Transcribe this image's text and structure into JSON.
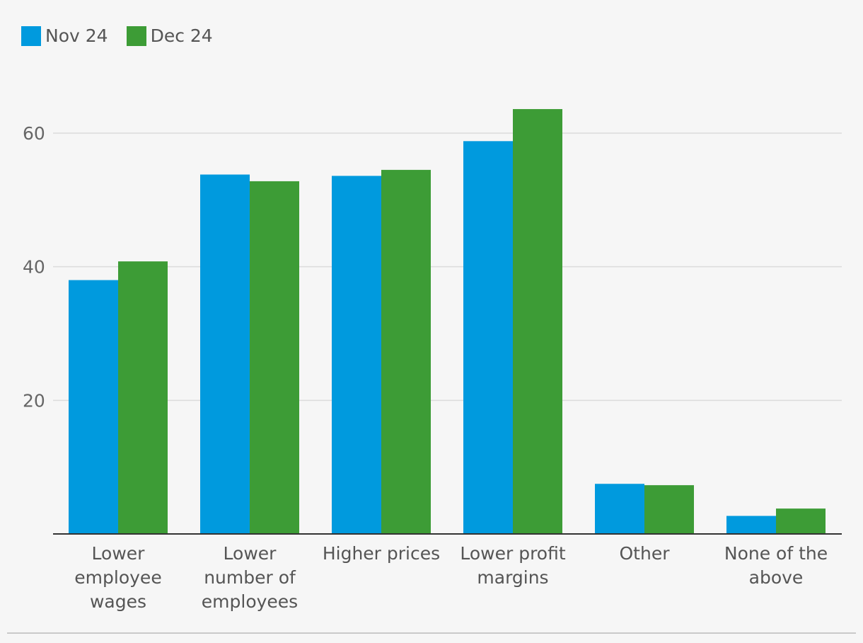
{
  "chart_data": {
    "type": "bar",
    "categories": [
      [
        "Lower",
        "employee",
        "wages"
      ],
      [
        "Lower",
        "number of",
        "employees"
      ],
      [
        "Higher prices"
      ],
      [
        "Lower profit",
        "margins"
      ],
      [
        "Other"
      ],
      [
        "None of the",
        "above"
      ]
    ],
    "series": [
      {
        "name": "Nov 24",
        "color": "#009ade",
        "values": [
          38,
          53.8,
          53.6,
          58.8,
          7.5,
          2.7
        ]
      },
      {
        "name": "Dec 24",
        "color": "#3d9c36",
        "values": [
          40.8,
          52.8,
          54.5,
          63.6,
          7.3,
          3.8
        ]
      }
    ],
    "yticks": [
      20,
      40,
      60
    ],
    "ylim": [
      0,
      70
    ],
    "grid": true,
    "legend": "top-left"
  }
}
